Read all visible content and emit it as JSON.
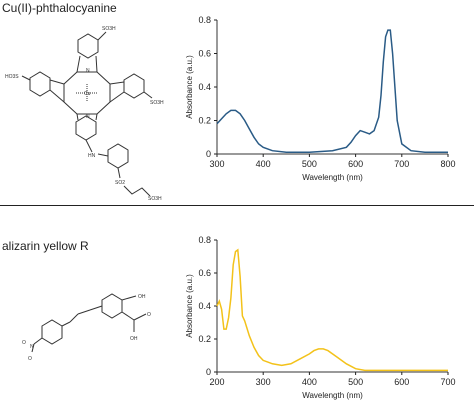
{
  "panels": [
    {
      "compound": "Cu(II)-phthalocyanine"
    },
    {
      "compound": "alizarin yellow R"
    }
  ],
  "chart_data": [
    {
      "type": "line",
      "title": "",
      "xlabel": "Wavelength (nm)",
      "ylabel": "Absorbance (a.u.)",
      "xlim": [
        300,
        800
      ],
      "ylim": [
        0,
        0.8
      ],
      "xticks": [
        300,
        400,
        500,
        600,
        700,
        800
      ],
      "yticks": [
        0,
        0.2,
        0.4,
        0.6,
        0.8
      ],
      "xtick_labels": [
        "300",
        "400",
        "500",
        "600",
        "700",
        "800"
      ],
      "ytick_labels": [
        "0",
        "0.2",
        "0.4",
        "0.6",
        "0.8"
      ],
      "grid": false,
      "color": "#2a5b86",
      "series": [
        {
          "x": [
            300,
            310,
            320,
            330,
            340,
            350,
            360,
            370,
            380,
            390,
            400,
            420,
            450,
            500,
            550,
            580,
            590,
            600,
            610,
            620,
            630,
            640,
            650,
            655,
            660,
            665,
            670,
            675,
            680,
            685,
            690,
            700,
            720,
            750,
            800
          ],
          "y": [
            0.18,
            0.21,
            0.24,
            0.26,
            0.26,
            0.24,
            0.2,
            0.15,
            0.1,
            0.06,
            0.04,
            0.02,
            0.01,
            0.01,
            0.02,
            0.04,
            0.07,
            0.11,
            0.14,
            0.13,
            0.12,
            0.14,
            0.22,
            0.35,
            0.55,
            0.7,
            0.74,
            0.74,
            0.6,
            0.4,
            0.2,
            0.06,
            0.02,
            0.01,
            0.01
          ]
        }
      ]
    },
    {
      "type": "line",
      "title": "",
      "xlabel": "Wavelength (nm)",
      "ylabel": "Absorbance (a.u.)",
      "xlim": [
        200,
        700
      ],
      "ylim": [
        0,
        0.8
      ],
      "xticks": [
        200,
        300,
        400,
        500,
        600,
        700
      ],
      "yticks": [
        0,
        0.2,
        0.4,
        0.6,
        0.8
      ],
      "xtick_labels": [
        "200",
        "300",
        "400",
        "500",
        "600",
        "700"
      ],
      "ytick_labels": [
        "0",
        "0.2",
        "0.4",
        "0.6",
        "0.8"
      ],
      "grid": false,
      "color": "#f3c21a",
      "series": [
        {
          "x": [
            200,
            205,
            210,
            215,
            220,
            225,
            230,
            235,
            240,
            245,
            250,
            255,
            260,
            270,
            280,
            290,
            300,
            310,
            320,
            340,
            360,
            380,
            400,
            410,
            420,
            430,
            440,
            460,
            480,
            500,
            520,
            550,
            600,
            650,
            700
          ],
          "y": [
            0.4,
            0.43,
            0.38,
            0.26,
            0.26,
            0.33,
            0.45,
            0.65,
            0.73,
            0.74,
            0.58,
            0.34,
            0.31,
            0.22,
            0.15,
            0.1,
            0.07,
            0.06,
            0.05,
            0.04,
            0.05,
            0.08,
            0.11,
            0.13,
            0.14,
            0.14,
            0.13,
            0.09,
            0.05,
            0.02,
            0.01,
            0.01,
            0.01,
            0.01,
            0.01
          ]
        }
      ]
    }
  ],
  "structure_labels": {
    "pc_so3h_top": "SO3H",
    "pc_so3h_left": "HO3S",
    "pc_so3h_right": "SO3H",
    "pc_cu": "Cu",
    "pc_n": "N",
    "pc_hn": "HN",
    "pc_so2": "SO2",
    "pc_so3h_tail": "SO3H",
    "az_oh": "OH",
    "az_cooh": "OH",
    "az_o": "O",
    "az_no2_n": "N",
    "az_no2_o": "O"
  }
}
